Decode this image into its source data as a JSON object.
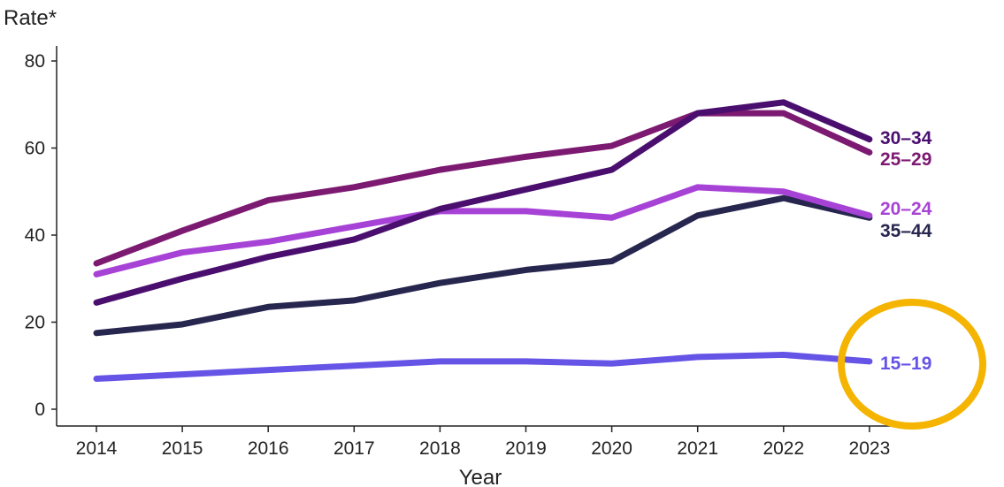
{
  "chart_data": {
    "type": "line",
    "title": "",
    "xlabel": "Year",
    "ylabel": "Rate*",
    "x": [
      "2014",
      "2015",
      "2016",
      "2017",
      "2018",
      "2019",
      "2020",
      "2021",
      "2022",
      "2023"
    ],
    "ylim": [
      0,
      80
    ],
    "yticks": [
      "0",
      "20",
      "40",
      "60",
      "80"
    ],
    "grid": false,
    "legend": "direct labels at right end of lines",
    "series": [
      {
        "name": "30–34",
        "color": "#4a0f6e",
        "values": [
          24.5,
          30,
          35,
          39,
          46,
          50.5,
          55,
          68,
          70.5,
          62
        ]
      },
      {
        "name": "25–29",
        "color": "#7c1a72",
        "values": [
          33.5,
          41,
          48,
          51,
          55,
          58,
          60.5,
          68,
          68,
          59
        ]
      },
      {
        "name": "20–24",
        "color": "#a742d6",
        "values": [
          31,
          36,
          38.5,
          42,
          45.5,
          45.5,
          44,
          51,
          50,
          44.5
        ]
      },
      {
        "name": "35–44",
        "color": "#27264f",
        "values": [
          17.5,
          19.5,
          23.5,
          25,
          29,
          32,
          34,
          44.5,
          48.5,
          44
        ]
      },
      {
        "name": "15–19",
        "color": "#6554e6",
        "values": [
          7,
          8,
          9,
          10,
          11,
          11,
          10.5,
          12,
          12.5,
          11
        ]
      }
    ],
    "highlight": {
      "target": "15–19",
      "shape": "ellipse",
      "color": "#f4b400"
    }
  }
}
